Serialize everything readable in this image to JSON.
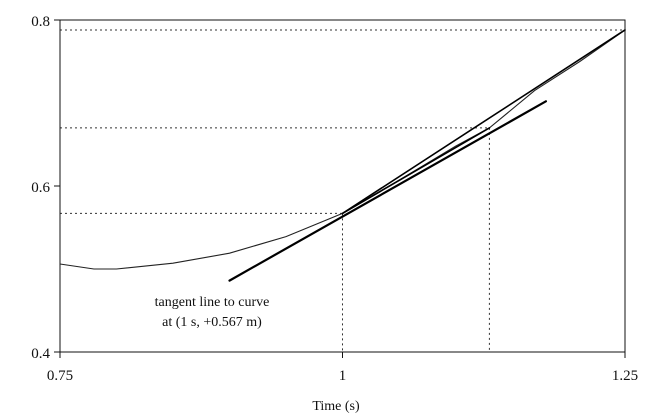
{
  "chart_data": {
    "type": "line",
    "title": "",
    "xlabel": "Time (s)",
    "ylabel": "",
    "xlim": [
      0.75,
      1.25
    ],
    "ylim": [
      0.4,
      0.8
    ],
    "x_ticks": [
      {
        "value": 0.75,
        "label": "0.75"
      },
      {
        "value": 1.0,
        "label": "1"
      },
      {
        "value": 1.25,
        "label": "1.25"
      }
    ],
    "y_ticks": [
      {
        "value": 0.4,
        "label": "0.4"
      },
      {
        "value": 0.6,
        "label": "0.6"
      },
      {
        "value": 0.8,
        "label": "0.8"
      }
    ],
    "grid": false,
    "series": [
      {
        "kind": "curve",
        "color": "#222222",
        "points": [
          [
            0.75,
            0.506
          ],
          [
            0.78,
            0.5
          ],
          [
            0.8,
            0.5
          ],
          [
            0.85,
            0.507
          ],
          [
            0.9,
            0.519
          ],
          [
            0.95,
            0.539
          ],
          [
            1.0,
            0.567
          ],
          [
            1.05,
            0.607
          ],
          [
            1.1,
            0.648
          ],
          [
            1.13,
            0.67
          ],
          [
            1.17,
            0.715
          ],
          [
            1.21,
            0.75
          ],
          [
            1.25,
            0.788
          ]
        ]
      },
      {
        "kind": "tangent",
        "color": "#000000",
        "points": [
          [
            0.9,
            0.486
          ],
          [
            1.18,
            0.702
          ]
        ]
      },
      {
        "kind": "secant",
        "color": "#000000",
        "points": [
          [
            1.0,
            0.567
          ],
          [
            1.13,
            0.67
          ]
        ]
      },
      {
        "kind": "secant",
        "color": "#000000",
        "points": [
          [
            1.0,
            0.567
          ],
          [
            1.25,
            0.788
          ]
        ]
      }
    ],
    "reference_lines": [
      {
        "x": 1.0,
        "y": 0.567
      },
      {
        "x": 1.13,
        "y": 0.67
      },
      {
        "x": 1.25,
        "y": 0.788
      }
    ],
    "annotation": {
      "lines": [
        "tangent line to curve",
        "at (1 s, +0.567 m)"
      ]
    }
  }
}
